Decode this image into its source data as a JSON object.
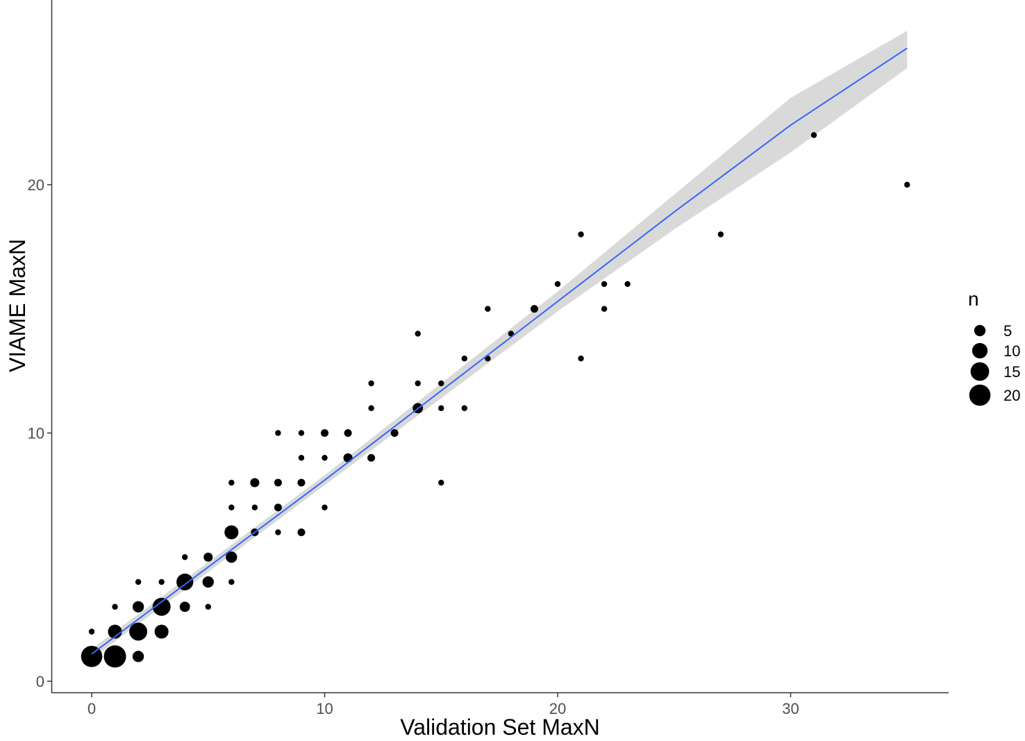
{
  "chart_data": {
    "type": "scatter",
    "title": "",
    "xlabel": "Validation Set MaxN",
    "ylabel": "VIAME MaxN",
    "xlim": [
      -1.75,
      36.7
    ],
    "ylim": [
      -0.45,
      27.6
    ],
    "x_ticks": [
      0,
      10,
      20,
      30
    ],
    "y_ticks": [
      0,
      10,
      20
    ],
    "grid": false,
    "legend": {
      "title": "n",
      "position": "right",
      "entries": [
        {
          "label": "5",
          "size": 5
        },
        {
          "label": "10",
          "size": 10
        },
        {
          "label": "15",
          "size": 15
        },
        {
          "label": "20",
          "size": 20
        }
      ]
    },
    "point_color": "#000000",
    "smooth_line": {
      "color": "#3366ff",
      "ribbon_color": "#d9d9d9",
      "x": [
        0,
        5,
        10,
        15,
        20,
        25,
        30,
        35
      ],
      "y": [
        1.1,
        4.6,
        8.1,
        11.7,
        15.3,
        18.9,
        22.4,
        25.5
      ],
      "ribbon_upper": [
        1.3,
        4.8,
        8.3,
        12.0,
        15.7,
        19.6,
        23.5,
        26.2
      ],
      "ribbon_lower": [
        0.9,
        4.4,
        7.9,
        11.4,
        14.9,
        18.2,
        21.3,
        24.7
      ]
    },
    "points": [
      {
        "x": 0,
        "y": 1,
        "n": 20
      },
      {
        "x": 1,
        "y": 1,
        "n": 22
      },
      {
        "x": 2,
        "y": 1,
        "n": 5
      },
      {
        "x": 0,
        "y": 2,
        "n": 1
      },
      {
        "x": 1,
        "y": 2,
        "n": 8
      },
      {
        "x": 2,
        "y": 2,
        "n": 14
      },
      {
        "x": 3,
        "y": 2,
        "n": 8
      },
      {
        "x": 1,
        "y": 3,
        "n": 1
      },
      {
        "x": 2,
        "y": 3,
        "n": 5
      },
      {
        "x": 3,
        "y": 3,
        "n": 14
      },
      {
        "x": 4,
        "y": 3,
        "n": 4
      },
      {
        "x": 5,
        "y": 3,
        "n": 1
      },
      {
        "x": 2,
        "y": 4,
        "n": 1
      },
      {
        "x": 3,
        "y": 4,
        "n": 1
      },
      {
        "x": 4,
        "y": 4,
        "n": 12
      },
      {
        "x": 5,
        "y": 4,
        "n": 5
      },
      {
        "x": 6,
        "y": 4,
        "n": 1
      },
      {
        "x": 4,
        "y": 5,
        "n": 1
      },
      {
        "x": 5,
        "y": 5,
        "n": 3
      },
      {
        "x": 6,
        "y": 5,
        "n": 5
      },
      {
        "x": 6,
        "y": 6,
        "n": 8
      },
      {
        "x": 7,
        "y": 6,
        "n": 2
      },
      {
        "x": 8,
        "y": 6,
        "n": 1
      },
      {
        "x": 9,
        "y": 6,
        "n": 2
      },
      {
        "x": 6,
        "y": 7,
        "n": 1
      },
      {
        "x": 7,
        "y": 7,
        "n": 1
      },
      {
        "x": 8,
        "y": 7,
        "n": 2
      },
      {
        "x": 10,
        "y": 7,
        "n": 1
      },
      {
        "x": 6,
        "y": 8,
        "n": 1
      },
      {
        "x": 7,
        "y": 8,
        "n": 3
      },
      {
        "x": 8,
        "y": 8,
        "n": 2
      },
      {
        "x": 9,
        "y": 8,
        "n": 2
      },
      {
        "x": 15,
        "y": 8,
        "n": 1
      },
      {
        "x": 9,
        "y": 9,
        "n": 1
      },
      {
        "x": 10,
        "y": 9,
        "n": 1
      },
      {
        "x": 11,
        "y": 9,
        "n": 3
      },
      {
        "x": 12,
        "y": 9,
        "n": 2
      },
      {
        "x": 8,
        "y": 10,
        "n": 1
      },
      {
        "x": 9,
        "y": 10,
        "n": 1
      },
      {
        "x": 10,
        "y": 10,
        "n": 2
      },
      {
        "x": 11,
        "y": 10,
        "n": 2
      },
      {
        "x": 13,
        "y": 10,
        "n": 2
      },
      {
        "x": 12,
        "y": 11,
        "n": 1
      },
      {
        "x": 14,
        "y": 11,
        "n": 4
      },
      {
        "x": 15,
        "y": 11,
        "n": 1
      },
      {
        "x": 16,
        "y": 11,
        "n": 1
      },
      {
        "x": 12,
        "y": 12,
        "n": 1
      },
      {
        "x": 14,
        "y": 12,
        "n": 1
      },
      {
        "x": 15,
        "y": 12,
        "n": 1
      },
      {
        "x": 16,
        "y": 13,
        "n": 1
      },
      {
        "x": 17,
        "y": 13,
        "n": 1
      },
      {
        "x": 21,
        "y": 13,
        "n": 1
      },
      {
        "x": 14,
        "y": 14,
        "n": 1
      },
      {
        "x": 18,
        "y": 14,
        "n": 1
      },
      {
        "x": 17,
        "y": 15,
        "n": 1
      },
      {
        "x": 19,
        "y": 15,
        "n": 2
      },
      {
        "x": 22,
        "y": 15,
        "n": 1
      },
      {
        "x": 20,
        "y": 16,
        "n": 1
      },
      {
        "x": 22,
        "y": 16,
        "n": 1
      },
      {
        "x": 23,
        "y": 16,
        "n": 1
      },
      {
        "x": 21,
        "y": 18,
        "n": 1
      },
      {
        "x": 27,
        "y": 18,
        "n": 1
      },
      {
        "x": 35,
        "y": 20,
        "n": 1
      },
      {
        "x": 31,
        "y": 22,
        "n": 1
      }
    ]
  }
}
